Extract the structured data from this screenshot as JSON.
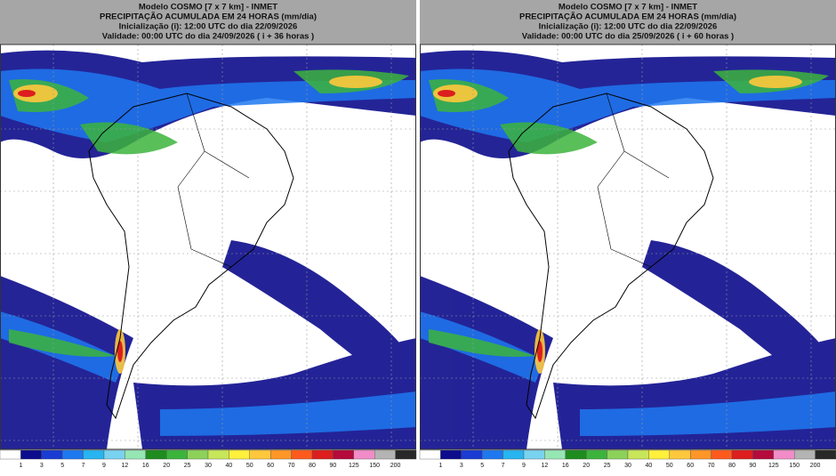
{
  "panels": [
    {
      "lines": [
        "Modelo COSMO [7 x 7 km] - INMET",
        "PRECIPITAÇÃO ACUMULADA EM 24 HORAS (mm/dia)",
        "Inicialização (i): 12:00 UTC do dia 22/09/2026",
        "Validade: 00:00 UTC do dia 24/09/2026 ( i + 36 horas )"
      ]
    },
    {
      "lines": [
        "Modelo COSMO [7 x 7 km] - INMET",
        "PRECIPITAÇÃO ACUMULADA EM 24 HORAS (mm/dia)",
        "Inicialização (i): 12:00 UTC do dia 22/09/2026",
        "Validade: 00:00 UTC do dia 25/09/2026 ( i + 60 horas )"
      ]
    }
  ],
  "colorbar": {
    "labels": [
      "1",
      "3",
      "5",
      "7",
      "9",
      "12",
      "16",
      "20",
      "25",
      "30",
      "40",
      "50",
      "60",
      "70",
      "80",
      "90",
      "125",
      "150",
      "200"
    ],
    "colors": [
      "#ffffff",
      "#0c0c8c",
      "#1a3cd2",
      "#1e78f0",
      "#28b4f0",
      "#78d2f0",
      "#96e6b4",
      "#1e8c1e",
      "#3cb43c",
      "#8cd25a",
      "#c8e65a",
      "#fff03c",
      "#ffc83c",
      "#ff9628",
      "#ff5a1e",
      "#dc1e1e",
      "#b40a3c",
      "#f08cc8",
      "#b4b4b4",
      "#282828"
    ]
  }
}
